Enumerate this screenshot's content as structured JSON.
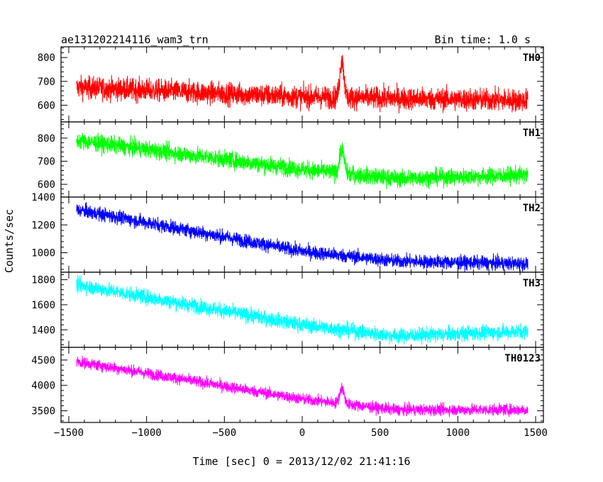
{
  "chart_data": {
    "type": "line",
    "title": "ae131202214116_wam3_trn",
    "subtitle": "Bin time: 1.0 s",
    "xlabel": "Time [sec] 0 = 2013/12/02 21:41:16",
    "ylabel": "Counts/sec",
    "xlim": [
      -1550,
      1550
    ],
    "x_ticks": [
      -1500,
      -1000,
      -500,
      0,
      500,
      1000,
      1500
    ],
    "x_tick_labels": [
      "−1500",
      "−1000",
      "−500",
      "0",
      "500",
      "1000",
      "1500"
    ],
    "x_range": [
      -1450,
      1450
    ],
    "grid": false,
    "panels": [
      {
        "name": "TH0",
        "color": "#ff0000",
        "ylim": [
          530,
          845
        ],
        "y_ticks": [
          600,
          700,
          800
        ],
        "baseline": [
          [
            -1450,
            675
          ],
          [
            0,
            635
          ],
          [
            1450,
            620
          ]
        ],
        "noise": 38,
        "flare": {
          "t": 255,
          "peak": 790,
          "width": 18
        }
      },
      {
        "name": "TH1",
        "color": "#00ff00",
        "ylim": [
          545,
          870
        ],
        "y_ticks": [
          600,
          700,
          800
        ],
        "baseline": [
          [
            -1450,
            790
          ],
          [
            0,
            665
          ],
          [
            600,
            625
          ],
          [
            1450,
            640
          ]
        ],
        "noise": 30,
        "flare": {
          "t": 255,
          "peak": 755,
          "width": 20
        }
      },
      {
        "name": "TH2",
        "color": "#0000ff",
        "ylim": [
          860,
          1400
        ],
        "y_ticks": [
          1000,
          1200,
          1400
        ],
        "baseline": [
          [
            -1450,
            1310
          ],
          [
            0,
            1010
          ],
          [
            600,
            940
          ],
          [
            1450,
            920
          ]
        ],
        "noise": 40,
        "flare": null
      },
      {
        "name": "TH3",
        "color": "#00ffff",
        "ylim": [
          1260,
          1860
        ],
        "y_ticks": [
          1400,
          1600,
          1800
        ],
        "baseline": [
          [
            -1450,
            1760
          ],
          [
            0,
            1440
          ],
          [
            600,
            1350
          ],
          [
            1450,
            1390
          ]
        ],
        "noise": 48,
        "flare": null
      },
      {
        "name": "TH0123",
        "color": "#ff00ff",
        "ylim": [
          3270,
          4750
        ],
        "y_ticks": [
          3500,
          4000,
          4500
        ],
        "baseline": [
          [
            -1450,
            4470
          ],
          [
            0,
            3730
          ],
          [
            600,
            3520
          ],
          [
            1450,
            3520
          ]
        ],
        "noise": 90,
        "flare": {
          "t": 255,
          "peak": 3950,
          "width": 20
        }
      }
    ]
  }
}
